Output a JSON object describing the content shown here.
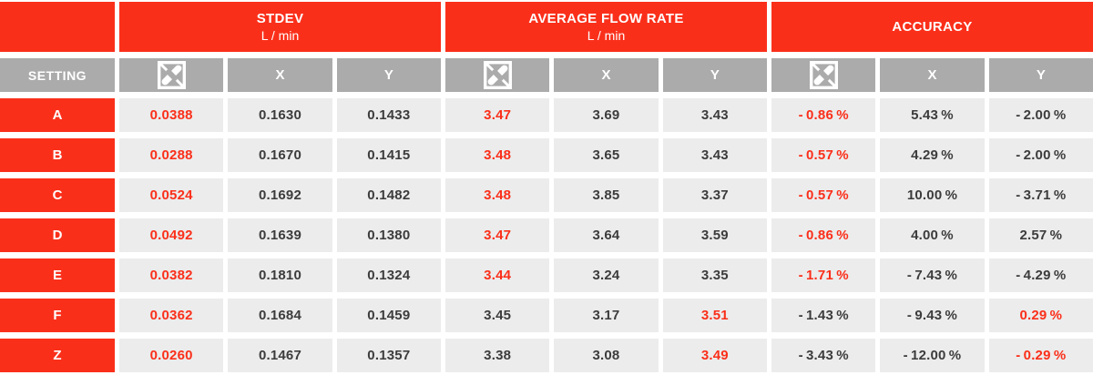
{
  "colors": {
    "accent_red": "#fa2f1a",
    "header_gray": "#ababab",
    "cell_gray": "#ececec",
    "dark_text": "#3c3c3c",
    "white": "#ffffff"
  },
  "header": {
    "setting_label": "SETTING",
    "x_label": "X",
    "y_label": "Y",
    "logo_icon": "checkered-diagonal-logo-icon",
    "groups": [
      {
        "title": "STDEV",
        "unit": "L / min"
      },
      {
        "title": "AVERAGE FLOW RATE",
        "unit": "L / min"
      },
      {
        "title": "ACCURACY",
        "unit": ""
      }
    ]
  },
  "rows": [
    {
      "setting": "A",
      "cells": [
        {
          "v": "0.0388",
          "red": true
        },
        {
          "v": "0.1630",
          "red": false
        },
        {
          "v": "0.1433",
          "red": false
        },
        {
          "v": "3.47",
          "red": true
        },
        {
          "v": "3.69",
          "red": false
        },
        {
          "v": "3.43",
          "red": false
        },
        {
          "v": "- 0.86 %",
          "red": true
        },
        {
          "v": "5.43 %",
          "red": false
        },
        {
          "v": "- 2.00 %",
          "red": false
        }
      ]
    },
    {
      "setting": "B",
      "cells": [
        {
          "v": "0.0288",
          "red": true
        },
        {
          "v": "0.1670",
          "red": false
        },
        {
          "v": "0.1415",
          "red": false
        },
        {
          "v": "3.48",
          "red": true
        },
        {
          "v": "3.65",
          "red": false
        },
        {
          "v": "3.43",
          "red": false
        },
        {
          "v": "- 0.57 %",
          "red": true
        },
        {
          "v": "4.29 %",
          "red": false
        },
        {
          "v": "- 2.00 %",
          "red": false
        }
      ]
    },
    {
      "setting": "C",
      "cells": [
        {
          "v": "0.0524",
          "red": true
        },
        {
          "v": "0.1692",
          "red": false
        },
        {
          "v": "0.1482",
          "red": false
        },
        {
          "v": "3.48",
          "red": true
        },
        {
          "v": "3.85",
          "red": false
        },
        {
          "v": "3.37",
          "red": false
        },
        {
          "v": "- 0.57 %",
          "red": true
        },
        {
          "v": "10.00 %",
          "red": false
        },
        {
          "v": "- 3.71 %",
          "red": false
        }
      ]
    },
    {
      "setting": "D",
      "cells": [
        {
          "v": "0.0492",
          "red": true
        },
        {
          "v": "0.1639",
          "red": false
        },
        {
          "v": "0.1380",
          "red": false
        },
        {
          "v": "3.47",
          "red": true
        },
        {
          "v": "3.64",
          "red": false
        },
        {
          "v": "3.59",
          "red": false
        },
        {
          "v": "- 0.86 %",
          "red": true
        },
        {
          "v": "4.00 %",
          "red": false
        },
        {
          "v": "2.57 %",
          "red": false
        }
      ]
    },
    {
      "setting": "E",
      "cells": [
        {
          "v": "0.0382",
          "red": true
        },
        {
          "v": "0.1810",
          "red": false
        },
        {
          "v": "0.1324",
          "red": false
        },
        {
          "v": "3.44",
          "red": true
        },
        {
          "v": "3.24",
          "red": false
        },
        {
          "v": "3.35",
          "red": false
        },
        {
          "v": "- 1.71 %",
          "red": true
        },
        {
          "v": "- 7.43 %",
          "red": false
        },
        {
          "v": "- 4.29 %",
          "red": false
        }
      ]
    },
    {
      "setting": "F",
      "cells": [
        {
          "v": "0.0362",
          "red": true
        },
        {
          "v": "0.1684",
          "red": false
        },
        {
          "v": "0.1459",
          "red": false
        },
        {
          "v": "3.45",
          "red": false
        },
        {
          "v": "3.17",
          "red": false
        },
        {
          "v": "3.51",
          "red": true
        },
        {
          "v": "- 1.43 %",
          "red": false
        },
        {
          "v": "- 9.43 %",
          "red": false
        },
        {
          "v": "0.29 %",
          "red": true
        }
      ]
    },
    {
      "setting": "Z",
      "cells": [
        {
          "v": "0.0260",
          "red": true
        },
        {
          "v": "0.1467",
          "red": false
        },
        {
          "v": "0.1357",
          "red": false
        },
        {
          "v": "3.38",
          "red": false
        },
        {
          "v": "3.08",
          "red": false
        },
        {
          "v": "3.49",
          "red": true
        },
        {
          "v": "- 3.43 %",
          "red": false
        },
        {
          "v": "- 12.00 %",
          "red": false
        },
        {
          "v": "- 0.29 %",
          "red": true
        }
      ]
    }
  ],
  "chart_data": {
    "type": "table",
    "title": "",
    "column_groups": [
      "STDEV L/min",
      "AVERAGE FLOW RATE L/min",
      "ACCURACY"
    ],
    "columns": [
      "SETTING",
      "STDEV logo",
      "STDEV X",
      "STDEV Y",
      "AVG logo",
      "AVG X",
      "AVG Y",
      "ACC logo",
      "ACC X",
      "ACC Y"
    ],
    "rows": [
      [
        "A",
        0.0388,
        0.163,
        0.1433,
        3.47,
        3.69,
        3.43,
        "-0.86 %",
        "5.43 %",
        "-2.00 %"
      ],
      [
        "B",
        0.0288,
        0.167,
        0.1415,
        3.48,
        3.65,
        3.43,
        "-0.57 %",
        "4.29 %",
        "-2.00 %"
      ],
      [
        "C",
        0.0524,
        0.1692,
        0.1482,
        3.48,
        3.85,
        3.37,
        "-0.57 %",
        "10.00 %",
        "-3.71 %"
      ],
      [
        "D",
        0.0492,
        0.1639,
        0.138,
        3.47,
        3.64,
        3.59,
        "-0.86 %",
        "4.00 %",
        "2.57 %"
      ],
      [
        "E",
        0.0382,
        0.181,
        0.1324,
        3.44,
        3.24,
        3.35,
        "-1.71 %",
        "-7.43 %",
        "-4.29 %"
      ],
      [
        "F",
        0.0362,
        0.1684,
        0.1459,
        3.45,
        3.17,
        3.51,
        "-1.43 %",
        "-9.43 %",
        "0.29 %"
      ],
      [
        "Z",
        0.026,
        0.1467,
        0.1357,
        3.38,
        3.08,
        3.49,
        "-3.43 %",
        "-12.00 %",
        "-0.29 %"
      ]
    ]
  }
}
